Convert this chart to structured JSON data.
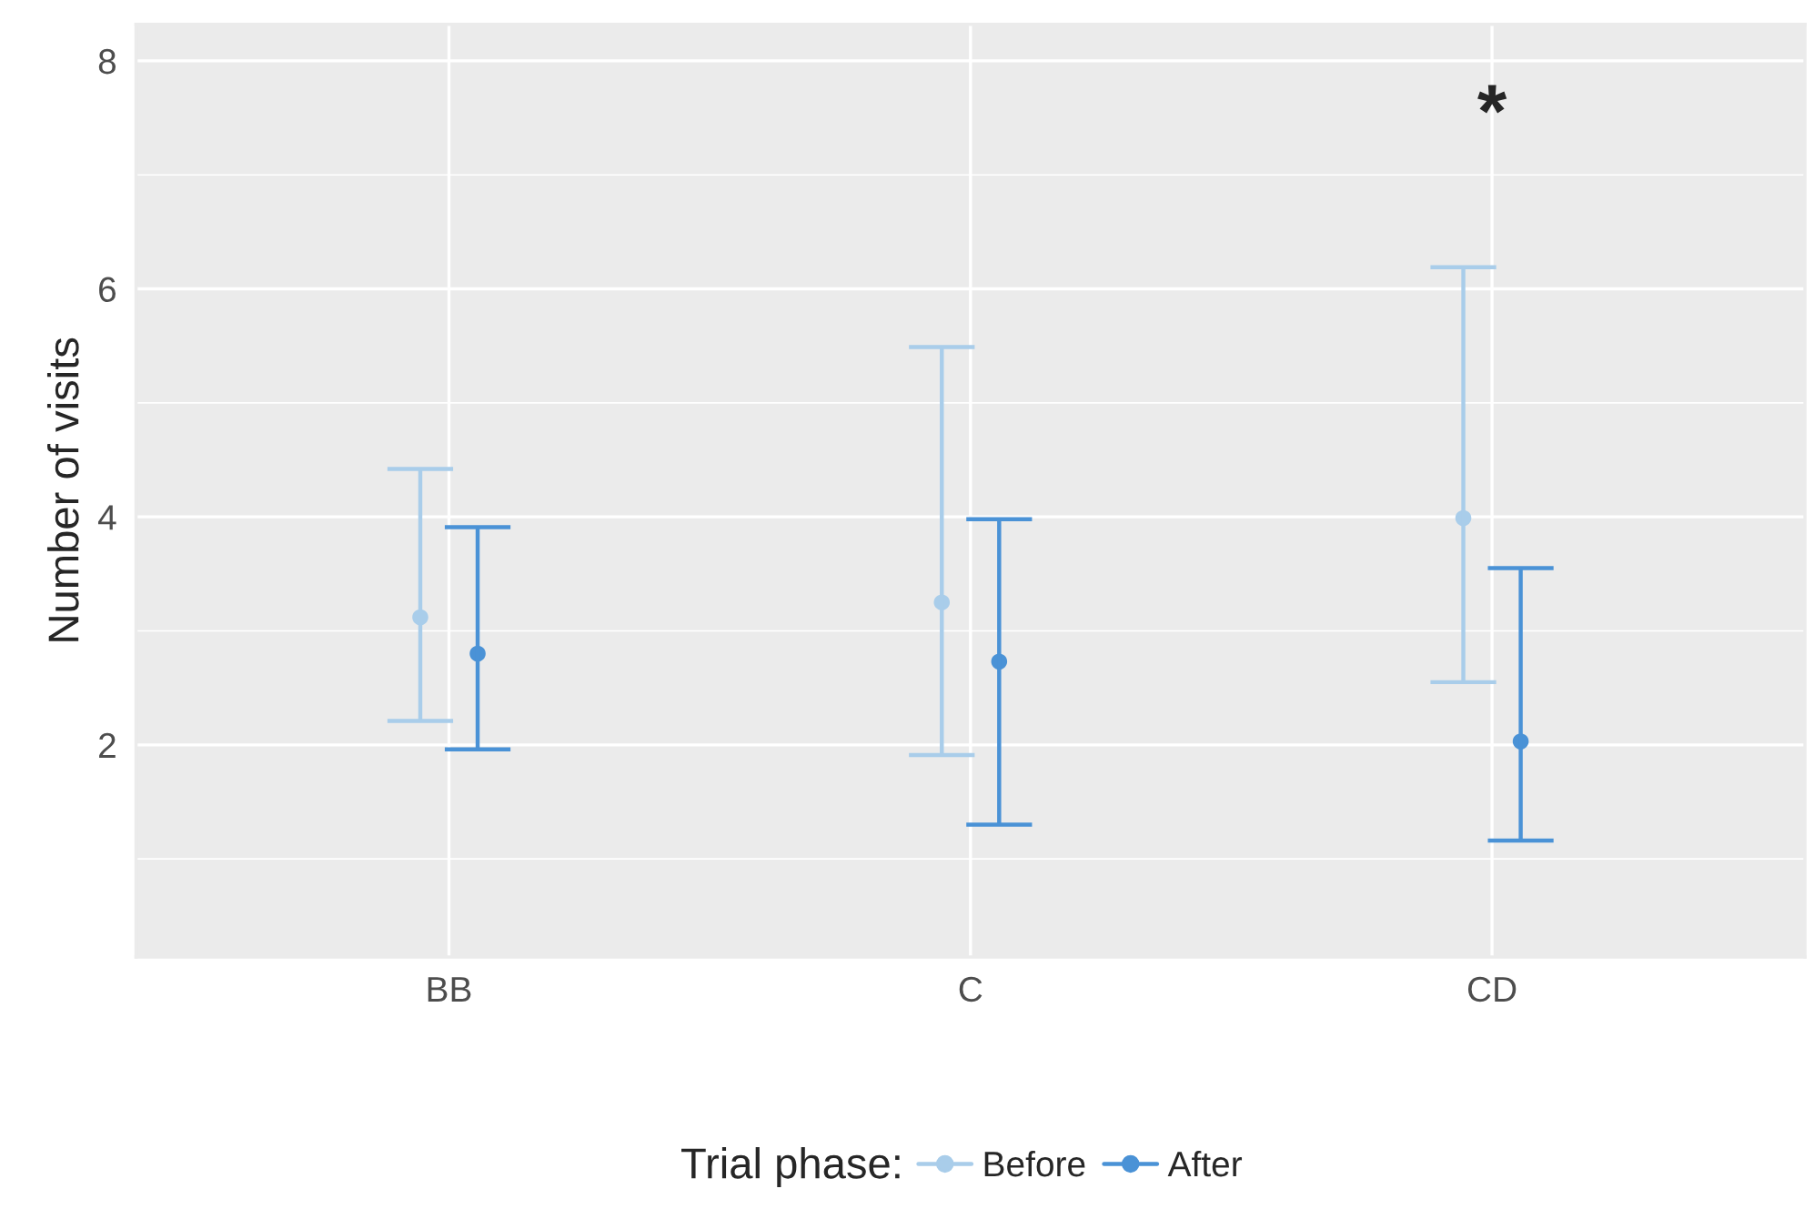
{
  "chart_data": {
    "type": "scatter",
    "ylabel": "Number of visits",
    "legend_title": "Trial phase:",
    "categories": [
      "BB",
      "C",
      "CD"
    ],
    "series": [
      {
        "name": "Before",
        "color": "#a9cdea",
        "values": [
          3.12,
          3.25,
          3.99
        ],
        "errors": [
          [
            2.21,
            4.42
          ],
          [
            1.91,
            5.49
          ],
          [
            2.55,
            6.19
          ]
        ]
      },
      {
        "name": "After",
        "color": "#4a92d6",
        "values": [
          2.8,
          2.73,
          2.03
        ],
        "errors": [
          [
            1.96,
            3.91
          ],
          [
            1.3,
            3.98
          ],
          [
            1.16,
            3.55
          ]
        ]
      }
    ],
    "ylim": [
      0.14,
      8.32
    ],
    "yticks": [
      2,
      4,
      6,
      8
    ],
    "annotations": [
      "*"
    ],
    "grid": true,
    "legend": "bottom",
    "marker": "circle"
  }
}
